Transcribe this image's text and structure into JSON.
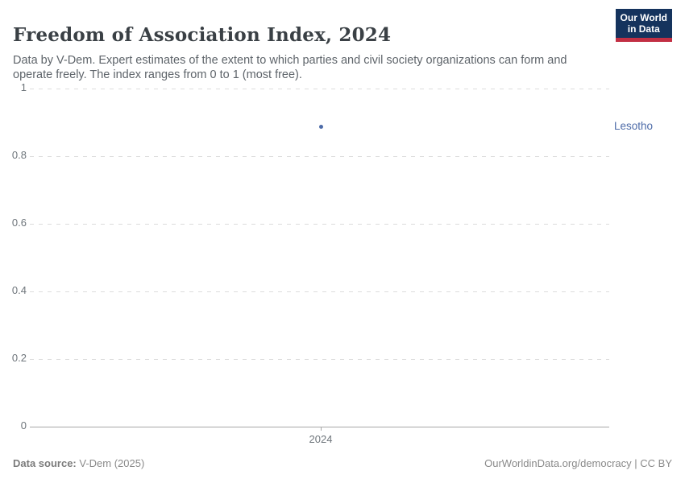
{
  "header": {
    "title": "Freedom of Association Index, 2024",
    "subtitle": "Data by V-Dem. Expert estimates of the extent to which parties and civil society organizations can form and operate freely. The index ranges from 0 to 1 (most free).",
    "logo": {
      "line1": "Our World",
      "line2": "in Data",
      "bg_color": "#15335d",
      "accent_color": "#c22f43"
    }
  },
  "chart_data": {
    "type": "scatter",
    "title": "Freedom of Association Index, 2024",
    "x": [
      2024
    ],
    "xticks": [
      "2024"
    ],
    "yticks": [
      0,
      0.2,
      0.4,
      0.6,
      0.8,
      1
    ],
    "ylim": [
      0,
      1
    ],
    "grid": "horizontal-dashed",
    "series": [
      {
        "name": "Lesotho",
        "values": [
          0.886
        ],
        "color": "#4d6ba8"
      }
    ],
    "xlabel": "",
    "ylabel": ""
  },
  "footer": {
    "source_label": "Data source:",
    "source_value": " V-Dem (2025)",
    "link": "OurWorldinData.org/democracy | CC BY"
  }
}
